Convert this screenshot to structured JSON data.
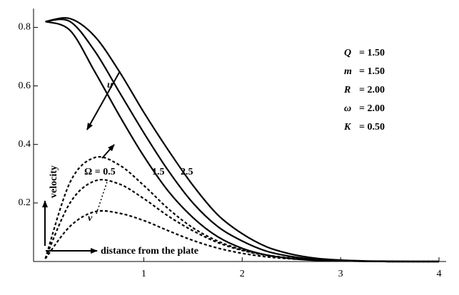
{
  "chart_data": {
    "type": "line",
    "x": [
      0,
      0.25,
      0.5,
      0.75,
      1,
      1.25,
      1.5,
      1.75,
      2,
      2.25,
      2.5,
      2.75,
      3,
      3.25,
      3.5,
      3.75,
      4
    ],
    "series": [
      {
        "color": "#000000",
        "dashed": false,
        "values": [
          0.82,
          0.79,
          0.65,
          0.5,
          0.36,
          0.24,
          0.15,
          0.085,
          0.045,
          0.022,
          0.01,
          0.004,
          0.002,
          0.001,
          0,
          0,
          0
        ]
      },
      {
        "color": "#000000",
        "dashed": false,
        "values": [
          0.82,
          0.82,
          0.72,
          0.58,
          0.44,
          0.31,
          0.2,
          0.12,
          0.07,
          0.035,
          0.017,
          0.007,
          0.003,
          0.001,
          0,
          0,
          0
        ]
      },
      {
        "color": "#000000",
        "dashed": false,
        "values": [
          0.82,
          0.83,
          0.77,
          0.65,
          0.51,
          0.38,
          0.26,
          0.16,
          0.095,
          0.05,
          0.025,
          0.011,
          0.005,
          0.002,
          0.001,
          0,
          0
        ]
      },
      {
        "color": "#000000",
        "dashed": true,
        "values": [
          0.01,
          0.27,
          0.355,
          0.33,
          0.26,
          0.18,
          0.115,
          0.07,
          0.04,
          0.022,
          0.012,
          0.006,
          0.003,
          0.001,
          0,
          0,
          0
        ]
      },
      {
        "color": "#000000",
        "dashed": true,
        "values": [
          0.01,
          0.2,
          0.275,
          0.265,
          0.215,
          0.155,
          0.105,
          0.065,
          0.038,
          0.021,
          0.011,
          0.006,
          0.003,
          0.001,
          0,
          0,
          0
        ]
      },
      {
        "color": "#000000",
        "dashed": true,
        "values": [
          0.01,
          0.12,
          0.17,
          0.165,
          0.14,
          0.105,
          0.072,
          0.046,
          0.028,
          0.016,
          0.009,
          0.005,
          0.002,
          0.001,
          0,
          0,
          0
        ]
      }
    ],
    "xlim": [
      -0.12,
      4.0
    ],
    "ylim": [
      0,
      0.84
    ],
    "xticks": [
      1,
      2,
      3,
      4
    ],
    "yticks": [
      0.2,
      0.4,
      0.6,
      0.8
    ],
    "annotations": {
      "u": "u",
      "v": "v",
      "omega": "Ω = 0.5",
      "mid": "1.5",
      "high": "2.5",
      "ylabel": "velocity",
      "xlabel": "distance from the plate"
    },
    "parameters": [
      {
        "symbol": "Q",
        "text": "= 1.50"
      },
      {
        "symbol": "m",
        "text": "= 1.50"
      },
      {
        "symbol": "R",
        "text": "= 2.00"
      },
      {
        "symbol": "ω",
        "text": "= 2.00"
      },
      {
        "symbol": "K",
        "text": "= 0.50"
      }
    ]
  }
}
